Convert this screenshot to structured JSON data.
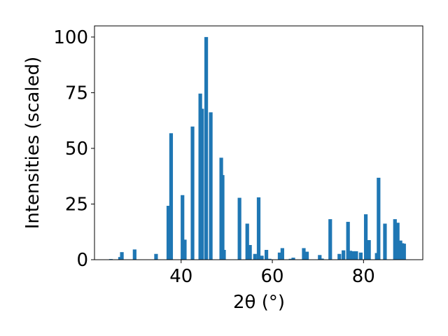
{
  "chart_data": {
    "type": "bar",
    "xlabel": "2θ (°)",
    "ylabel": "Intensities (scaled)",
    "xlim": [
      21,
      93
    ],
    "ylim": [
      0,
      105
    ],
    "xticks": [
      40,
      60,
      80
    ],
    "yticks": [
      0,
      25,
      50,
      75,
      100
    ],
    "bar_width_data": 0.8,
    "color": "#1f77b4",
    "grid": false,
    "x": [
      24.6,
      26.6,
      27.0,
      29.8,
      34.5,
      37.2,
      37.8,
      40.3,
      40.8,
      42.5,
      44.2,
      44.6,
      45.5,
      46.5,
      48.8,
      49.1,
      49.4,
      52.8,
      54.5,
      55.1,
      56.2,
      57.0,
      57.7,
      58.7,
      59.4,
      61.6,
      62.2,
      64.0,
      64.6,
      66.9,
      67.6,
      70.4,
      70.9,
      72.7,
      74.7,
      75.6,
      76.6,
      77.1,
      77.8,
      78.4,
      79.4,
      80.5,
      81.2,
      82.9,
      83.3,
      84.7,
      86.9,
      87.5,
      88.1,
      88.5,
      88.9
    ],
    "values": [
      0.3,
      1.2,
      3.4,
      4.6,
      2.6,
      24.2,
      56.8,
      29.0,
      9.0,
      59.8,
      74.6,
      67.8,
      100,
      66.2,
      45.8,
      38.0,
      4.4,
      27.8,
      16.2,
      6.6,
      2.6,
      28.0,
      1.8,
      4.4,
      0.4,
      3.2,
      5.2,
      0.4,
      0.9,
      5.2,
      3.6,
      2.1,
      0.5,
      18.2,
      2.6,
      4.2,
      17.0,
      4.0,
      3.8,
      3.8,
      3.2,
      20.4,
      8.8,
      3.0,
      36.8,
      16.2,
      18.2,
      16.6,
      8.6,
      7.4,
      7.2
    ]
  }
}
